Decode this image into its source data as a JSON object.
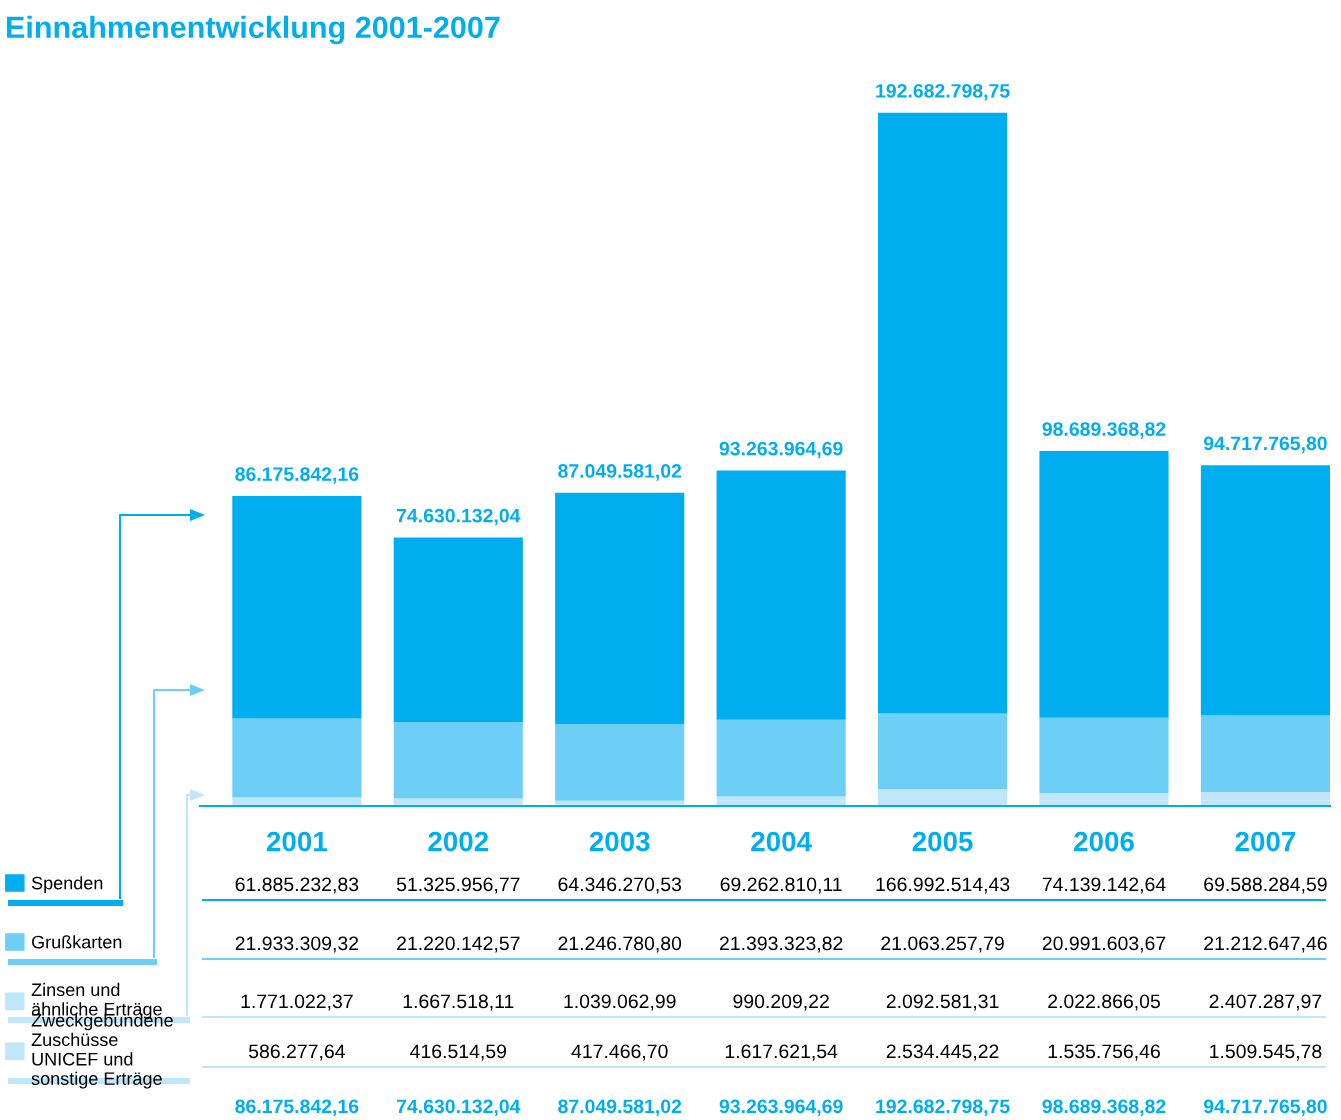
{
  "chart_data": {
    "type": "bar",
    "title": "Einnahmenentwicklung 2001-2007",
    "stacked": true,
    "tick_labels": "x",
    "grid": false,
    "legend": "bottom left",
    "categories": [
      "2001",
      "2002",
      "2003",
      "2004",
      "2005",
      "2006",
      "2007"
    ],
    "series": [
      {
        "name": "Zweckgebundene Zuschüsse UNICEF und sonstige Erträge",
        "color": "#bfe6f9",
        "values": [
          586277.64,
          416514.59,
          417466.7,
          1617621.54,
          2534445.22,
          1535756.46,
          1509545.78
        ],
        "value_labels": [
          "586.277,64",
          "416.514,59",
          "417.466,70",
          "1.617.621,54",
          "2.534.445,22",
          "1.535.756,46",
          "1.509.545,78"
        ]
      },
      {
        "name": "Zinsen und ähnliche Erträge",
        "color": "#bfe6f9",
        "values": [
          1771022.37,
          1667518.11,
          1039062.99,
          990209.22,
          2092581.31,
          2022866.05,
          2407287.97
        ],
        "value_labels": [
          "1.771.022,37",
          "1.667.518,11",
          "1.039.062,99",
          "990.209,22",
          "2.092.581,31",
          "2.022.866,05",
          "2.407.287,97"
        ]
      },
      {
        "name": "Grußkarten",
        "color": "#6dcff6",
        "values": [
          21933309.32,
          21220142.57,
          21246780.8,
          21393323.82,
          21063257.79,
          20991603.67,
          21212647.46
        ],
        "value_labels": [
          "21.933.309,32",
          "21.220.142,57",
          "21.246.780,80",
          "21.393.323,82",
          "21.063.257,79",
          "20.991.603,67",
          "21.212.647,46"
        ]
      },
      {
        "name": "Spenden",
        "color": "#00aeef",
        "values": [
          61885232.83,
          51325956.77,
          64346270.53,
          69262810.11,
          166992514.43,
          74139142.64,
          69588284.59
        ],
        "value_labels": [
          "61.885.232,83",
          "51.325.956,77",
          "64.346.270,53",
          "69.262.810,11",
          "166.992.514,43",
          "74.139.142,64",
          "69.588.284,59"
        ]
      }
    ],
    "totals": [
      "86.175.842,16",
      "74.630.132,04",
      "87.049.581,02",
      "93.263.964,69",
      "192.682.798,75",
      "98.689.368,82",
      "94.717.765,80"
    ]
  }
}
